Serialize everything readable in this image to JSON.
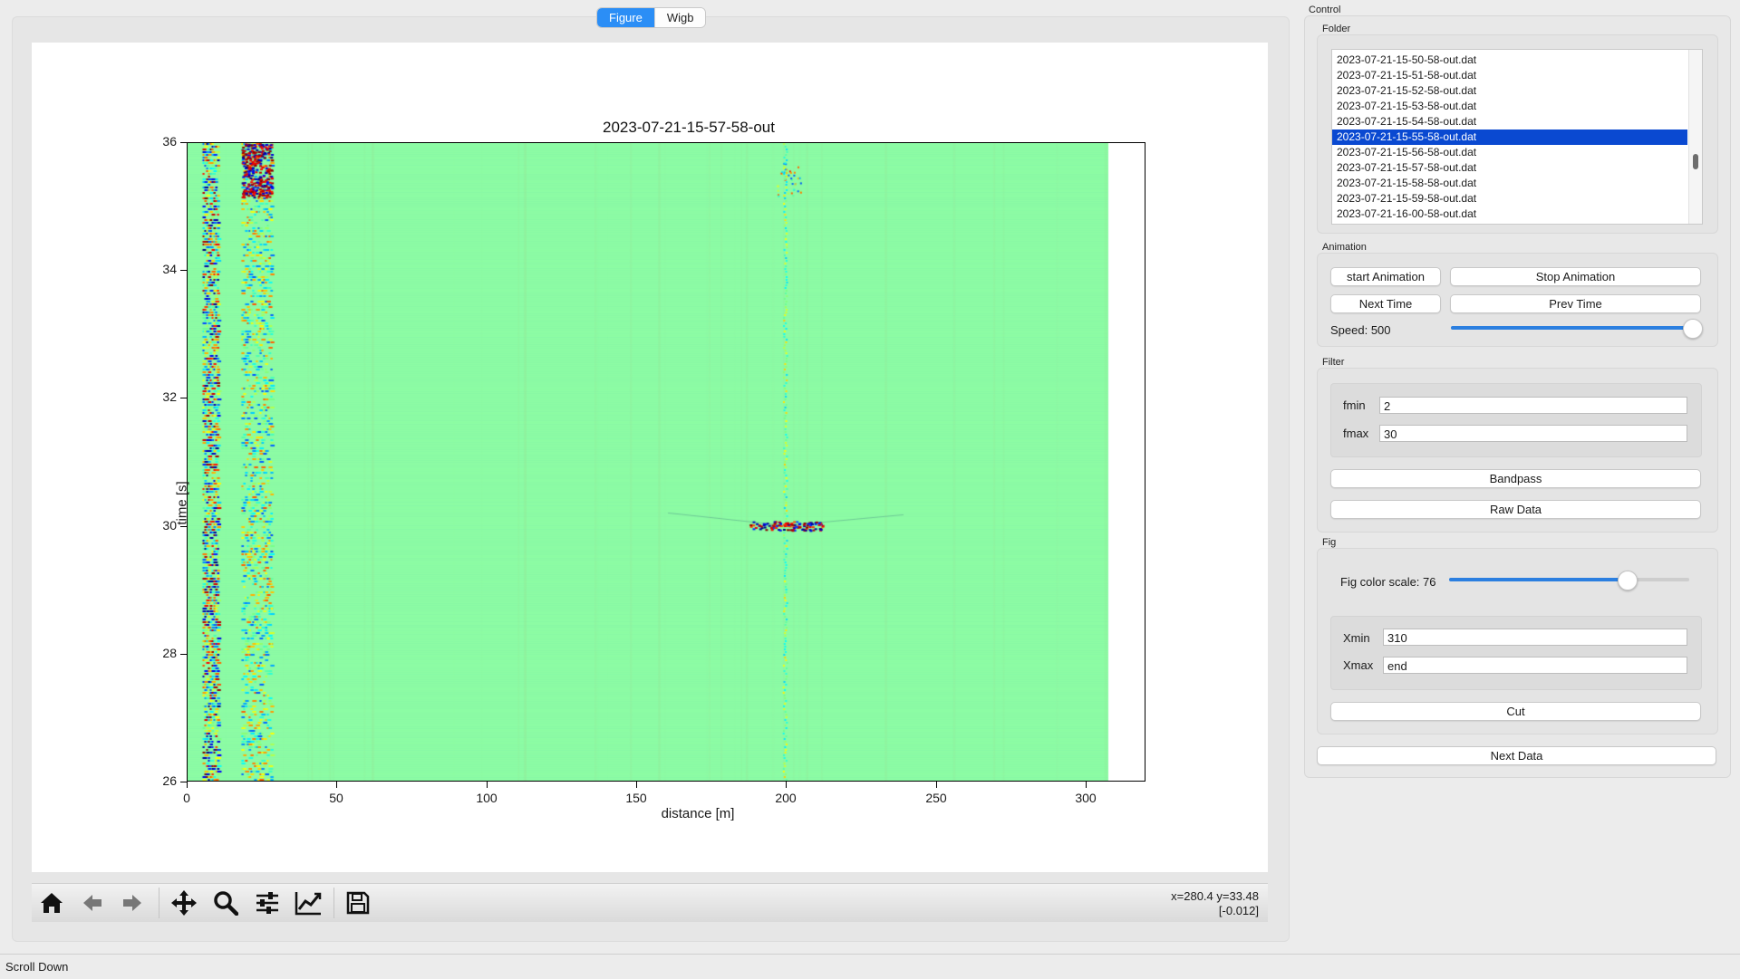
{
  "tabs": [
    {
      "label": "Figure",
      "active": true
    },
    {
      "label": "Wigb",
      "active": false
    }
  ],
  "plot": {
    "title": "2023-07-21-15-57-58-out",
    "xlabel": "distance [m]",
    "ylabel": "time [s]",
    "yticks": [
      "26",
      "28",
      "30",
      "32",
      "34",
      "36"
    ],
    "xticks": [
      "0",
      "50",
      "100",
      "150",
      "200",
      "250",
      "300"
    ]
  },
  "chart_data": {
    "type": "heatmap",
    "title": "2023-07-21-15-57-58-out",
    "xlabel": "distance [m]",
    "ylabel": "time [s]",
    "xlim": [
      0,
      320
    ],
    "ylim": [
      26,
      36
    ],
    "data_extent_x": [
      0,
      308
    ],
    "colormap": "jet",
    "features": [
      {
        "x_range": [
          5,
          10
        ],
        "y_range": [
          26,
          36
        ],
        "description": "strong vertical band"
      },
      {
        "x_range": [
          18,
          28
        ],
        "y_range": [
          26,
          36
        ],
        "description": "vertical band"
      },
      {
        "x": 200,
        "y": 30,
        "description": "localized event"
      }
    ]
  },
  "toolbar": {
    "icons": [
      "home-icon",
      "back-arrow-icon",
      "forward-arrow-icon",
      "pan-icon",
      "zoom-icon",
      "configure-subplots-icon",
      "edit-axis-icon",
      "save-icon"
    ],
    "coord_line1": "x=280.4 y=33.48",
    "coord_line2": "[-0.012]"
  },
  "status_bar": {
    "text": "Scroll Down"
  },
  "control": {
    "title": "Control",
    "folder": {
      "title": "Folder",
      "files": [
        "2023-07-21-15-50-58-out.dat",
        "2023-07-21-15-51-58-out.dat",
        "2023-07-21-15-52-58-out.dat",
        "2023-07-21-15-53-58-out.dat",
        "2023-07-21-15-54-58-out.dat",
        "2023-07-21-15-55-58-out.dat",
        "2023-07-21-15-56-58-out.dat",
        "2023-07-21-15-57-58-out.dat",
        "2023-07-21-15-58-58-out.dat",
        "2023-07-21-15-59-58-out.dat",
        "2023-07-21-16-00-58-out.dat"
      ],
      "selected": "2023-07-21-15-55-58-out.dat"
    },
    "animation": {
      "title": "Animation",
      "start_label": "start Animation",
      "stop_label": "Stop Animation",
      "next_label": "Next Time",
      "prev_label": "Prev Time",
      "speed_label": "Speed: 500",
      "speed_fraction": 1.0
    },
    "filter": {
      "title": "Filter",
      "fmin_label": "fmin",
      "fmin_value": "2",
      "fmax_label": "fmax",
      "fmax_value": "30",
      "bandpass_label": "Bandpass",
      "raw_label": "Raw Data"
    },
    "fig": {
      "title": "Fig",
      "color_scale_label": "Fig color scale: 76",
      "color_scale_fraction": 0.76,
      "xmin_label": "Xmin",
      "xmin_value": "310",
      "xmax_label": "Xmax",
      "xmax_value": "end",
      "cut_label": "Cut"
    },
    "next_data_label": "Next Data"
  },
  "colors": {
    "accent": "#2b8ef6",
    "selection": "#0a49d1",
    "heatmap_background": "#8dfca4"
  }
}
